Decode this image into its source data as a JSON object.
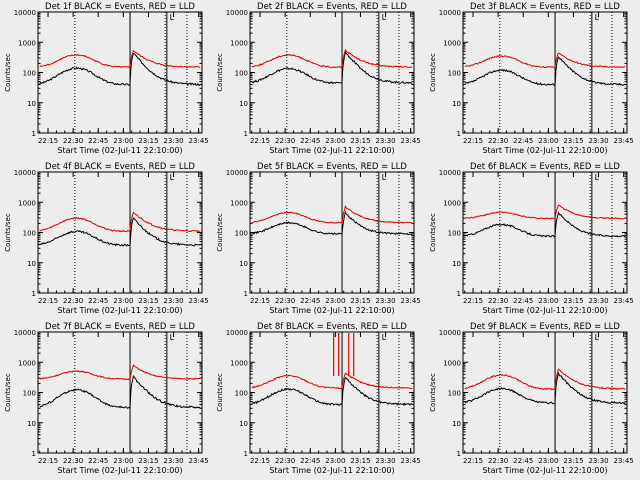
{
  "background": "#ededed",
  "colors": {
    "events": "#000000",
    "lld": "#e00000",
    "frame": "#000000"
  },
  "chart_data": [
    {
      "type": "line",
      "title": "Det 1f BLACK = Events, RED = LLD",
      "xlabel": "Start Time (02-Jul-11 22:10:00)",
      "ylabel": "Counts/sec",
      "ylog": true,
      "ylim": [
        1,
        10000
      ],
      "xlim": [
        -1,
        97
      ],
      "x_ticks": [
        5,
        20,
        35,
        50,
        65,
        80,
        95
      ],
      "x_tick_labels": [
        "22:15",
        "22:30",
        "22:45",
        "23:00",
        "23:15",
        "23:30",
        "23:45"
      ],
      "y_ticks": [
        1,
        10,
        100,
        1000,
        10000
      ],
      "y_tick_labels": [
        "1",
        "10",
        "100",
        "1000",
        "10000"
      ],
      "dotted_lines": [
        21,
        75,
        88
      ],
      "solid_lines": [
        54,
        76
      ],
      "marker_label": "L",
      "marker_x": 79,
      "spikes": [],
      "series": [
        {
          "name": "Events",
          "color": "#000000",
          "base": 40,
          "bump": 100,
          "bump_center": 22,
          "bump_width": 12,
          "flare": 400,
          "flare_at": 56,
          "flare_decay": 6,
          "noise": 0.07
        },
        {
          "name": "LLD",
          "color": "#e00000",
          "base": 150,
          "bump": 230,
          "bump_center": 22,
          "bump_width": 12,
          "flare": 380,
          "flare_at": 56,
          "flare_decay": 7,
          "noise": 0.05
        }
      ]
    },
    {
      "type": "line",
      "title": "Det 2f BLACK = Events, RED = LLD",
      "xlabel": "Start Time (02-Jul-11 22:10:00)",
      "ylabel": "Counts/sec",
      "ylog": true,
      "ylim": [
        1,
        10000
      ],
      "xlim": [
        -1,
        97
      ],
      "x_ticks": [
        5,
        20,
        35,
        50,
        65,
        80,
        95
      ],
      "x_tick_labels": [
        "22:15",
        "22:30",
        "22:45",
        "23:00",
        "23:15",
        "23:30",
        "23:45"
      ],
      "y_ticks": [
        1,
        10,
        100,
        1000,
        10000
      ],
      "y_tick_labels": [
        "1",
        "10",
        "100",
        "1000",
        "10000"
      ],
      "dotted_lines": [
        21,
        75,
        88
      ],
      "solid_lines": [
        54,
        76
      ],
      "marker_label": "L",
      "marker_x": 79,
      "spikes": [],
      "series": [
        {
          "name": "Events",
          "color": "#000000",
          "base": 45,
          "bump": 90,
          "bump_center": 22,
          "bump_width": 12,
          "flare": 420,
          "flare_at": 56,
          "flare_decay": 6,
          "noise": 0.07
        },
        {
          "name": "LLD",
          "color": "#e00000",
          "base": 150,
          "bump": 230,
          "bump_center": 22,
          "bump_width": 12,
          "flare": 400,
          "flare_at": 56,
          "flare_decay": 7,
          "noise": 0.05
        }
      ]
    },
    {
      "type": "line",
      "title": "Det 3f BLACK = Events, RED = LLD",
      "xlabel": "Start Time (02-Jul-11 22:10:00)",
      "ylabel": "Counts/sec",
      "ylog": true,
      "ylim": [
        1,
        10000
      ],
      "xlim": [
        -1,
        97
      ],
      "x_ticks": [
        5,
        20,
        35,
        50,
        65,
        80,
        95
      ],
      "x_tick_labels": [
        "22:15",
        "22:30",
        "22:45",
        "23:00",
        "23:15",
        "23:30",
        "23:45"
      ],
      "y_ticks": [
        1,
        10,
        100,
        1000,
        10000
      ],
      "y_tick_labels": [
        "1",
        "10",
        "100",
        "1000",
        "10000"
      ],
      "dotted_lines": [
        21,
        75,
        88
      ],
      "solid_lines": [
        54,
        76
      ],
      "marker_label": "L",
      "marker_x": 79,
      "spikes": [],
      "series": [
        {
          "name": "Events",
          "color": "#000000",
          "base": 40,
          "bump": 80,
          "bump_center": 22,
          "bump_width": 12,
          "flare": 300,
          "flare_at": 56,
          "flare_decay": 6,
          "noise": 0.07
        },
        {
          "name": "LLD",
          "color": "#e00000",
          "base": 150,
          "bump": 200,
          "bump_center": 22,
          "bump_width": 12,
          "flare": 300,
          "flare_at": 56,
          "flare_decay": 7,
          "noise": 0.05
        }
      ]
    },
    {
      "type": "line",
      "title": "Det 4f BLACK = Events, RED = LLD",
      "xlabel": "Start Time (02-Jul-11 22:10:00)",
      "ylabel": "Counts/sec",
      "ylog": true,
      "ylim": [
        1,
        10000
      ],
      "xlim": [
        -1,
        97
      ],
      "x_ticks": [
        5,
        20,
        35,
        50,
        65,
        80,
        95
      ],
      "x_tick_labels": [
        "22:15",
        "22:30",
        "22:45",
        "23:00",
        "23:15",
        "23:30",
        "23:45"
      ],
      "y_ticks": [
        1,
        10,
        100,
        1000,
        10000
      ],
      "y_tick_labels": [
        "1",
        "10",
        "100",
        "1000",
        "10000"
      ],
      "dotted_lines": [
        21,
        75,
        88
      ],
      "solid_lines": [
        54,
        76
      ],
      "marker_label": "L",
      "marker_x": 79,
      "spikes": [],
      "series": [
        {
          "name": "Events",
          "color": "#000000",
          "base": 38,
          "bump": 70,
          "bump_center": 22,
          "bump_width": 12,
          "flare": 260,
          "flare_at": 56,
          "flare_decay": 6,
          "noise": 0.07
        },
        {
          "name": "LLD",
          "color": "#e00000",
          "base": 110,
          "bump": 190,
          "bump_center": 22,
          "bump_width": 12,
          "flare": 350,
          "flare_at": 56,
          "flare_decay": 7,
          "noise": 0.05
        }
      ]
    },
    {
      "type": "line",
      "title": "Det 5f BLACK = Events, RED = LLD",
      "xlabel": "Start Time (02-Jul-11 22:10:00)",
      "ylabel": "Counts/sec",
      "ylog": true,
      "ylim": [
        1,
        10000
      ],
      "xlim": [
        -1,
        97
      ],
      "x_ticks": [
        5,
        20,
        35,
        50,
        65,
        80,
        95
      ],
      "x_tick_labels": [
        "22:15",
        "22:30",
        "22:45",
        "23:00",
        "23:15",
        "23:30",
        "23:45"
      ],
      "y_ticks": [
        1,
        10,
        100,
        1000,
        10000
      ],
      "y_tick_labels": [
        "1",
        "10",
        "100",
        "1000",
        "10000"
      ],
      "dotted_lines": [
        21,
        75,
        88
      ],
      "solid_lines": [
        54,
        76
      ],
      "marker_label": "L",
      "marker_x": 79,
      "spikes": [],
      "series": [
        {
          "name": "Events",
          "color": "#000000",
          "base": 90,
          "bump": 120,
          "bump_center": 22,
          "bump_width": 12,
          "flare": 350,
          "flare_at": 56,
          "flare_decay": 6,
          "noise": 0.06
        },
        {
          "name": "LLD",
          "color": "#e00000",
          "base": 210,
          "bump": 250,
          "bump_center": 22,
          "bump_width": 12,
          "flare": 500,
          "flare_at": 56,
          "flare_decay": 7,
          "noise": 0.04
        }
      ]
    },
    {
      "type": "line",
      "title": "Det 6f BLACK = Events, RED = LLD",
      "xlabel": "Start Time (02-Jul-11 22:10:00)",
      "ylabel": "Counts/sec",
      "ylog": true,
      "ylim": [
        1,
        10000
      ],
      "xlim": [
        -1,
        97
      ],
      "x_ticks": [
        5,
        20,
        35,
        50,
        65,
        80,
        95
      ],
      "x_tick_labels": [
        "22:15",
        "22:30",
        "22:45",
        "23:00",
        "23:15",
        "23:30",
        "23:45"
      ],
      "y_ticks": [
        1,
        10,
        100,
        1000,
        10000
      ],
      "y_tick_labels": [
        "1",
        "10",
        "100",
        "1000",
        "10000"
      ],
      "dotted_lines": [
        21,
        75,
        88
      ],
      "solid_lines": [
        54,
        76
      ],
      "marker_label": "L",
      "marker_x": 79,
      "spikes": [],
      "series": [
        {
          "name": "Events",
          "color": "#000000",
          "base": 75,
          "bump": 110,
          "bump_center": 22,
          "bump_width": 12,
          "flare": 380,
          "flare_at": 56,
          "flare_decay": 6,
          "noise": 0.06
        },
        {
          "name": "LLD",
          "color": "#e00000",
          "base": 290,
          "bump": 180,
          "bump_center": 22,
          "bump_width": 12,
          "flare": 520,
          "flare_at": 56,
          "flare_decay": 7,
          "noise": 0.04
        }
      ]
    },
    {
      "type": "line",
      "title": "Det 7f BLACK = Events, RED = LLD",
      "xlabel": "Start Time (02-Jul-11 22:10:00)",
      "ylabel": "Counts/sec",
      "ylog": true,
      "ylim": [
        1,
        10000
      ],
      "xlim": [
        -1,
        97
      ],
      "x_ticks": [
        5,
        20,
        35,
        50,
        65,
        80,
        95
      ],
      "x_tick_labels": [
        "22:15",
        "22:30",
        "22:45",
        "23:00",
        "23:15",
        "23:30",
        "23:45"
      ],
      "y_ticks": [
        1,
        10,
        100,
        1000,
        10000
      ],
      "y_tick_labels": [
        "1",
        "10",
        "100",
        "1000",
        "10000"
      ],
      "dotted_lines": [
        21,
        75,
        88
      ],
      "solid_lines": [
        54,
        76
      ],
      "marker_label": "L",
      "marker_x": 79,
      "spikes": [],
      "series": [
        {
          "name": "Events",
          "color": "#000000",
          "base": 32,
          "bump": 90,
          "bump_center": 22,
          "bump_width": 12,
          "flare": 300,
          "flare_at": 56,
          "flare_decay": 6,
          "noise": 0.07
        },
        {
          "name": "LLD",
          "color": "#e00000",
          "base": 280,
          "bump": 230,
          "bump_center": 22,
          "bump_width": 12,
          "flare": 500,
          "flare_at": 56,
          "flare_decay": 7,
          "noise": 0.04
        }
      ]
    },
    {
      "type": "line",
      "title": "Det 8f BLACK = Events, RED = LLD",
      "xlabel": "Start Time (02-Jul-11 22:10:00)",
      "ylabel": "Counts/sec",
      "ylog": true,
      "ylim": [
        1,
        10000
      ],
      "xlim": [
        -1,
        97
      ],
      "x_ticks": [
        5,
        20,
        35,
        50,
        65,
        80,
        95
      ],
      "x_tick_labels": [
        "22:15",
        "22:30",
        "22:45",
        "23:00",
        "23:15",
        "23:30",
        "23:45"
      ],
      "y_ticks": [
        1,
        10,
        100,
        1000,
        10000
      ],
      "y_tick_labels": [
        "1",
        "10",
        "100",
        "1000",
        "10000"
      ],
      "dotted_lines": [
        21,
        75,
        88
      ],
      "solid_lines": [
        54,
        76
      ],
      "marker_label": "L",
      "marker_x": 79,
      "spikes": [
        49,
        52,
        58,
        61
      ],
      "series": [
        {
          "name": "Events",
          "color": "#000000",
          "base": 40,
          "bump": 90,
          "bump_center": 22,
          "bump_width": 12,
          "flare": 280,
          "flare_at": 56,
          "flare_decay": 6,
          "noise": 0.07
        },
        {
          "name": "LLD",
          "color": "#e00000",
          "base": 140,
          "bump": 220,
          "bump_center": 22,
          "bump_width": 12,
          "flare": 300,
          "flare_at": 56,
          "flare_decay": 7,
          "noise": 0.05
        }
      ]
    },
    {
      "type": "line",
      "title": "Det 9f BLACK = Events, RED = LLD",
      "xlabel": "Start Time (02-Jul-11 22:10:00)",
      "ylabel": "Counts/sec",
      "ylog": true,
      "ylim": [
        1,
        10000
      ],
      "xlim": [
        -1,
        97
      ],
      "x_ticks": [
        5,
        20,
        35,
        50,
        65,
        80,
        95
      ],
      "x_tick_labels": [
        "22:15",
        "22:30",
        "22:45",
        "23:00",
        "23:15",
        "23:30",
        "23:45"
      ],
      "y_ticks": [
        1,
        10,
        100,
        1000,
        10000
      ],
      "y_tick_labels": [
        "1",
        "10",
        "100",
        "1000",
        "10000"
      ],
      "dotted_lines": [
        21,
        75,
        88
      ],
      "solid_lines": [
        54,
        76
      ],
      "marker_label": "L",
      "marker_x": 79,
      "spikes": [],
      "series": [
        {
          "name": "Events",
          "color": "#000000",
          "base": 45,
          "bump": 90,
          "bump_center": 22,
          "bump_width": 12,
          "flare": 380,
          "flare_at": 56,
          "flare_decay": 6,
          "noise": 0.07
        },
        {
          "name": "LLD",
          "color": "#e00000",
          "base": 130,
          "bump": 250,
          "bump_center": 22,
          "bump_width": 12,
          "flare": 450,
          "flare_at": 56,
          "flare_decay": 7,
          "noise": 0.05
        }
      ]
    }
  ]
}
